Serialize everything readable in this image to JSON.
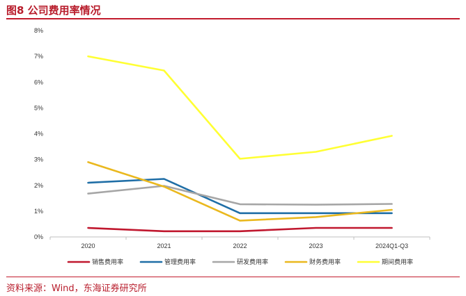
{
  "figure": {
    "title": "图8  公司费用率情况",
    "source": "资料来源：Wind，东海证券研究所"
  },
  "chart_data": {
    "type": "line",
    "categories": [
      "2020",
      "2021",
      "2022",
      "2023",
      "2024Q1-Q3"
    ],
    "y_ticks": [
      "0%",
      "1%",
      "2%",
      "3%",
      "4%",
      "5%",
      "6%",
      "7%",
      "8%"
    ],
    "ylim": [
      0,
      8
    ],
    "unit": "%",
    "grid": false,
    "legend_position": "bottom",
    "series": [
      {
        "name": "销售费用率",
        "color": "#c0172e",
        "values": [
          0.35,
          0.22,
          0.22,
          0.35,
          0.35
        ]
      },
      {
        "name": "管理费用率",
        "color": "#1f6ea6",
        "values": [
          2.1,
          2.25,
          0.92,
          0.92,
          0.92
        ]
      },
      {
        "name": "研发费用率",
        "color": "#a6a6a6",
        "values": [
          1.68,
          1.98,
          1.27,
          1.25,
          1.28
        ]
      },
      {
        "name": "财务费用率",
        "color": "#eab81e",
        "values": [
          2.9,
          1.95,
          0.63,
          0.77,
          1.05
        ]
      },
      {
        "name": "期间费用率",
        "color": "#ffff33",
        "values": [
          7.0,
          6.45,
          3.03,
          3.3,
          3.92
        ]
      }
    ]
  }
}
